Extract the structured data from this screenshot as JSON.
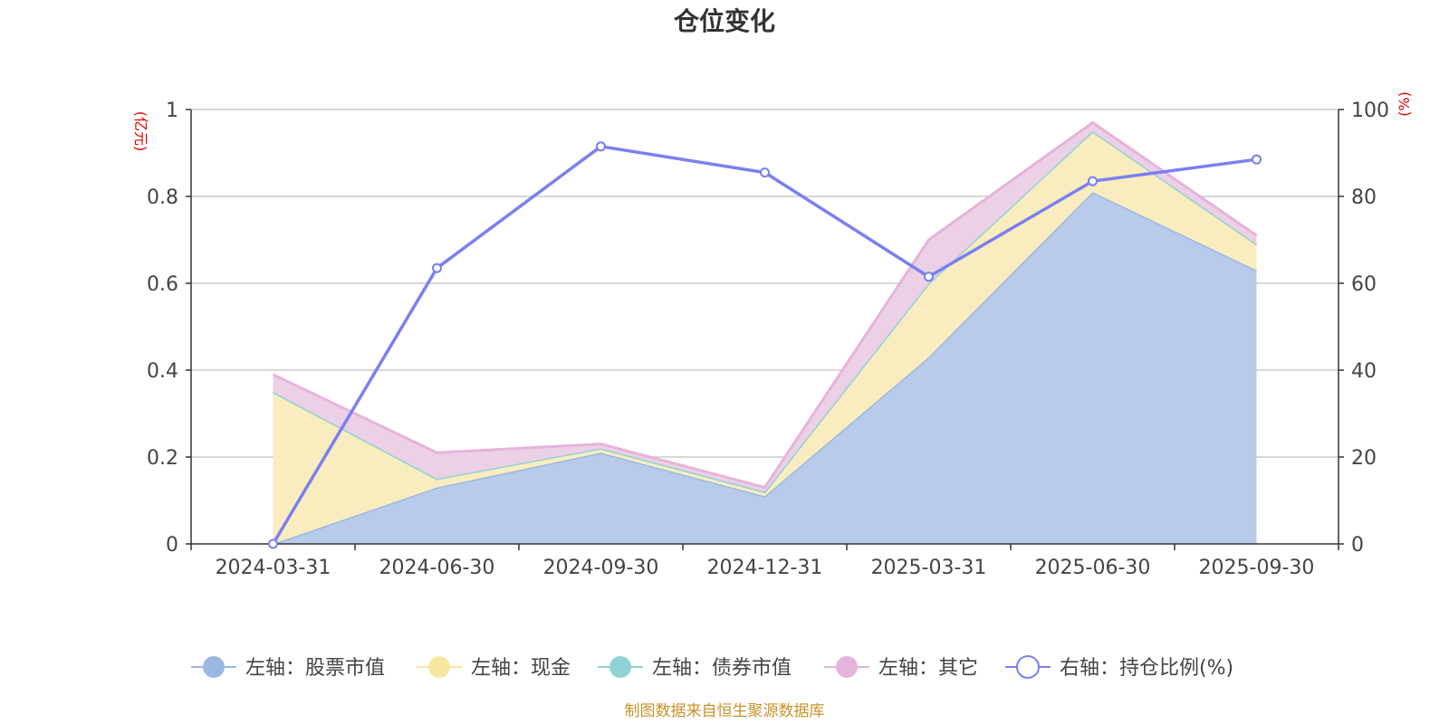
{
  "chart_data": {
    "type": "area",
    "title": "仓位变化",
    "x": [
      "2024-03-31",
      "2024-06-30",
      "2024-09-30",
      "2024-12-31",
      "2025-03-31",
      "2025-06-30",
      "2025-09-30"
    ],
    "left_axis": {
      "unit": "(亿元)",
      "ylim": [
        0,
        1
      ],
      "ticks": [
        "0",
        "0.2",
        "0.4",
        "0.6",
        "0.8",
        "1"
      ]
    },
    "right_axis": {
      "unit": "(%)",
      "ylim": [
        0,
        100
      ],
      "ticks": [
        "0",
        "20",
        "40",
        "60",
        "80",
        "100"
      ]
    },
    "series": [
      {
        "name": "左轴：股票市值",
        "axis": "left",
        "kind": "stacked-area",
        "color": "#9bb8e0",
        "fill": "#b8cbea",
        "values": [
          0,
          0.13,
          0.21,
          0.11,
          0.43,
          0.81,
          0.63
        ]
      },
      {
        "name": "左轴：现金",
        "axis": "left",
        "kind": "stacked-area",
        "color": "#f7e6a0",
        "fill": "#f9edc0",
        "values": [
          0.35,
          0.02,
          0.01,
          0.01,
          0.17,
          0.14,
          0.06
        ]
      },
      {
        "name": "左轴：债券市值",
        "axis": "left",
        "kind": "stacked-area",
        "color": "#8fd3d4",
        "fill": "#a8dedf",
        "values": [
          0,
          0,
          0,
          0,
          0,
          0,
          0
        ]
      },
      {
        "name": "左轴：其它",
        "axis": "left",
        "kind": "stacked-area",
        "color": "#e6b3da",
        "fill": "#ecd0e6",
        "values": [
          0.04,
          0.06,
          0.01,
          0.01,
          0.1,
          0.02,
          0.02
        ]
      },
      {
        "name": "右轴：持仓比例(%)",
        "axis": "right",
        "kind": "line",
        "color": "#7b7ff0",
        "values": [
          0,
          63.5,
          91.5,
          85.5,
          61.5,
          83.5,
          88.5
        ]
      }
    ],
    "grid": true,
    "legend_position": "bottom"
  },
  "footer": {
    "source": "制图数据来自恒生聚源数据库"
  }
}
